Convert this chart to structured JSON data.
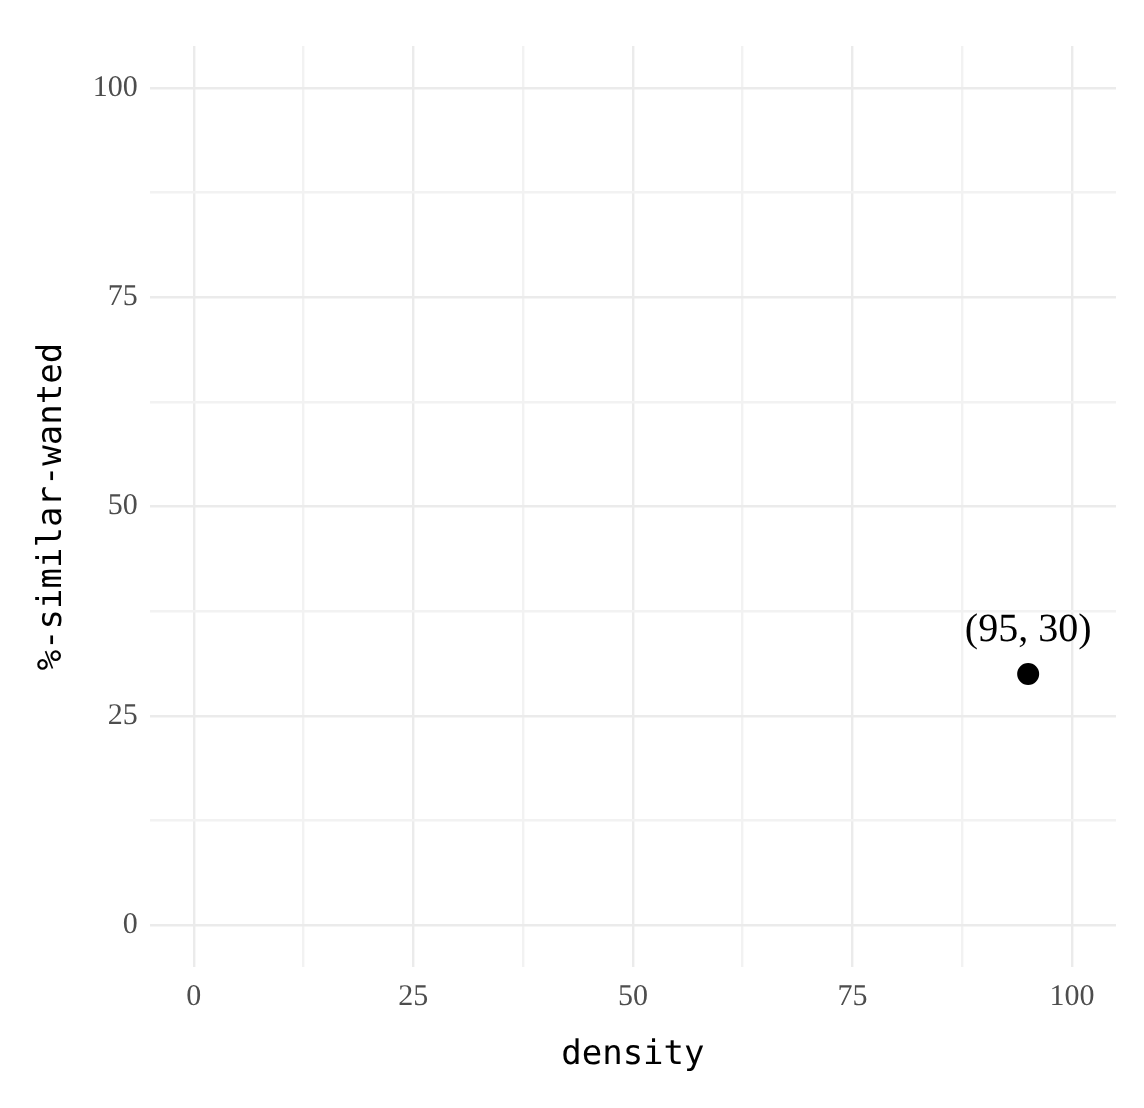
{
  "chart_data": {
    "type": "scatter",
    "xlabel": "density",
    "ylabel": "%-similar-wanted",
    "x": [
      95
    ],
    "series": [
      {
        "color": "#000000",
        "values": [
          30
        ]
      }
    ],
    "xlim": [
      -5,
      105
    ],
    "ylim": [
      -5,
      105
    ],
    "xticks": [
      0,
      {
        "value": 12.5,
        "label": null
      },
      25,
      {
        "value": 37.5,
        "label": null
      },
      50,
      {
        "value": 62.5,
        "label": null
      },
      75,
      {
        "value": 87.5,
        "label": null
      },
      100
    ],
    "yticks": [
      0,
      {
        "value": 12.5,
        "label": null
      },
      25,
      {
        "value": 37.5,
        "label": null
      },
      50,
      {
        "value": 62.5,
        "label": null
      },
      75,
      {
        "value": 87.5,
        "label": null
      },
      100
    ],
    "grid": true,
    "legend": false,
    "marker": "circle",
    "annotations": [
      {
        "text": "(95, 30)",
        "x": 95,
        "y": 30
      }
    ]
  }
}
